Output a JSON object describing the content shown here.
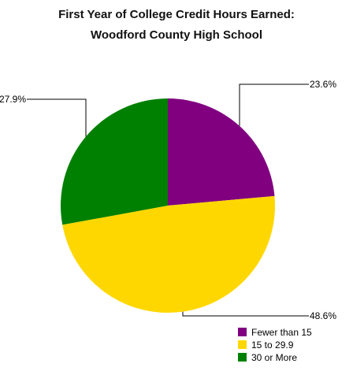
{
  "chart_data": {
    "type": "pie",
    "title_lines": [
      "First Year of College Credit Hours Earned:",
      "Woodford County High School"
    ],
    "slices": [
      {
        "name": "Fewer than 15",
        "value": 23.6,
        "label": "23.6%",
        "color": "#800080"
      },
      {
        "name": "15 to 29.9",
        "value": 48.6,
        "label": "48.6%",
        "color": "#FFD700"
      },
      {
        "name": "30 or More",
        "value": 27.9,
        "label": "27.9%",
        "color": "#008000"
      }
    ],
    "start_angle_deg": 0,
    "direction": "clockwise",
    "legend_position": "bottom-right"
  }
}
